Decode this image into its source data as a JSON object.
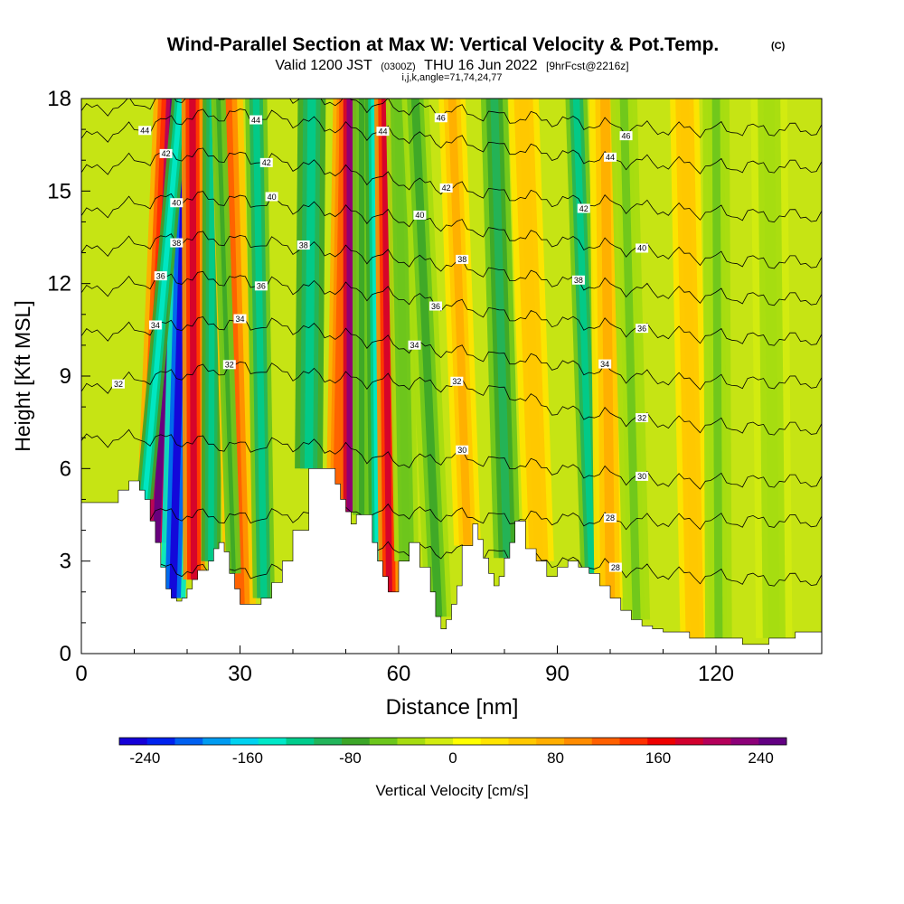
{
  "header": {
    "title_main": "Wind-Parallel Section at Max W: Vertical Velocity & Pot.Temp.",
    "title_mark": "(C)",
    "valid_prefix": "Valid 1200 JST",
    "valid_utc": "(0300Z)",
    "valid_date": "THU 16 Jun 2022",
    "valid_fcst": "[9hrFcst@2216z]",
    "section_info": "i,j,k,angle=71,74,24,77"
  },
  "chart_data": {
    "type": "heatmap",
    "xlabel": "Distance [nm]",
    "ylabel": "Height [Kft MSL]",
    "xlim": [
      0,
      140
    ],
    "ylim": [
      0,
      18
    ],
    "x_ticks": [
      "0",
      "30",
      "60",
      "90",
      "120"
    ],
    "x_tick_values": [
      0,
      30,
      60,
      90,
      120
    ],
    "y_ticks": [
      "0",
      "3",
      "6",
      "9",
      "12",
      "15",
      "18"
    ],
    "y_tick_values": [
      0,
      3,
      6,
      9,
      12,
      15,
      18
    ],
    "colorbar": {
      "label": "Vertical Velocity [cm/s]",
      "tick_labels": [
        "-240",
        "-160",
        "-80",
        "0",
        "80",
        "160",
        "240"
      ],
      "tick_values": [
        -240,
        -160,
        -80,
        0,
        80,
        160,
        240
      ],
      "range": [
        -260,
        260
      ],
      "colors": [
        "#1500d8",
        "#0022ee",
        "#0060f0",
        "#009bf0",
        "#00d2f0",
        "#00e8c8",
        "#00cc8c",
        "#22b45a",
        "#3ca628",
        "#6cc61c",
        "#a6dc10",
        "#d2ec10",
        "#ffff00",
        "#ffe400",
        "#ffc800",
        "#ffae00",
        "#ff8c00",
        "#ff6000",
        "#ff3000",
        "#ee0000",
        "#d2002e",
        "#b4005a",
        "#8c0078",
        "#620082"
      ]
    },
    "terrain_profile": {
      "x": [
        0,
        7,
        7,
        9,
        9,
        11,
        11,
        12,
        12,
        13,
        13,
        14,
        14,
        15,
        15,
        16,
        16,
        17,
        17,
        18,
        18,
        19,
        19,
        20,
        20,
        21,
        21,
        22,
        22,
        24,
        24,
        25,
        25,
        26,
        26,
        27,
        27,
        28,
        28,
        29,
        29,
        30,
        30,
        32,
        32,
        34,
        34,
        36,
        36,
        38,
        38,
        40,
        40,
        43,
        43,
        48,
        48,
        49,
        49,
        50,
        50,
        51,
        51,
        52,
        52,
        55,
        55,
        56,
        56,
        57,
        57,
        58,
        58,
        60,
        60,
        62,
        62,
        64,
        64,
        66,
        66,
        67,
        67,
        68,
        68,
        69,
        69,
        70,
        70,
        71,
        71,
        72,
        72,
        74,
        74,
        75,
        75,
        76,
        76,
        77,
        77,
        78,
        78,
        79,
        79,
        80,
        80,
        81,
        81,
        82,
        82,
        84,
        84,
        86,
        86,
        88,
        88,
        90,
        90,
        92,
        92,
        94,
        94,
        96,
        96,
        98,
        98,
        100,
        100,
        102,
        102,
        104,
        104,
        106,
        106,
        108,
        108,
        110,
        110,
        115,
        115,
        125,
        125,
        130,
        130,
        135,
        135,
        140
      ],
      "height": [
        4.9,
        4.9,
        5.3,
        5.3,
        5.6,
        5.6,
        5.3,
        5.3,
        5.0,
        5.0,
        4.3,
        4.3,
        3.6,
        3.6,
        2.8,
        2.8,
        2.1,
        2.1,
        1.8,
        1.8,
        1.7,
        1.7,
        1.8,
        1.8,
        2.1,
        2.1,
        2.4,
        2.4,
        2.7,
        2.7,
        3.0,
        3.0,
        3.4,
        3.4,
        3.6,
        3.6,
        3.3,
        3.3,
        2.6,
        2.6,
        2.1,
        2.1,
        1.6,
        1.6,
        1.6,
        1.6,
        1.8,
        1.8,
        2.3,
        2.3,
        3.0,
        3.0,
        4.0,
        4.0,
        6.0,
        6.0,
        5.5,
        5.5,
        5.0,
        5.0,
        4.6,
        4.6,
        4.2,
        4.2,
        4.5,
        4.5,
        3.6,
        3.6,
        3.0,
        3.0,
        2.5,
        2.5,
        2.0,
        2.0,
        3.0,
        3.0,
        3.6,
        3.6,
        2.8,
        2.8,
        2.0,
        2.0,
        1.2,
        1.2,
        0.8,
        0.8,
        1.1,
        1.1,
        1.6,
        1.6,
        2.2,
        2.2,
        3.5,
        3.5,
        4.2,
        4.2,
        3.7,
        3.7,
        3.1,
        3.1,
        2.6,
        2.6,
        2.2,
        2.2,
        2.5,
        2.5,
        3.1,
        3.1,
        3.6,
        3.6,
        4.3,
        4.3,
        3.4,
        3.4,
        3.0,
        3.0,
        2.5,
        2.5,
        2.8,
        2.8,
        3.0,
        3.0,
        2.8,
        2.8,
        2.6,
        2.6,
        2.2,
        2.2,
        1.8,
        1.8,
        1.4,
        1.4,
        1.1,
        1.1,
        0.9,
        0.9,
        0.8,
        0.8,
        0.7,
        0.7,
        0.5,
        0.5,
        0.3,
        0.3,
        0.5,
        0.5,
        0.7,
        0.7
      ]
    },
    "velocity_bands": [
      {
        "x": 12.8,
        "w": 1.9,
        "v": 150,
        "x_top": 16.0
      },
      {
        "x": 14.2,
        "w": 2.0,
        "v": 250,
        "x_top": 17.6
      },
      {
        "x": 17.3,
        "w": 2.1,
        "v": -250,
        "x_top": 20.0
      },
      {
        "x": 12.0,
        "w": 1.4,
        "v": -150,
        "x_top": 19.0
      },
      {
        "x": 21.3,
        "w": 1.8,
        "v": 180,
        "x_top": 21.0
      },
      {
        "x": 24.5,
        "w": 1.6,
        "v": -120,
        "x_top": 24.8
      },
      {
        "x": 30.0,
        "w": 2.6,
        "v": 110,
        "x_top": 27.5
      },
      {
        "x": 34.5,
        "w": 1.8,
        "v": -110,
        "x_top": 33.0
      },
      {
        "x": 28.8,
        "w": 1.2,
        "v": -80,
        "x_top": 25.8
      },
      {
        "x": 43.0,
        "w": 2.3,
        "v": -120,
        "x_top": 43.6
      },
      {
        "x": 48.2,
        "w": 1.6,
        "v": 120,
        "x_top": 49.5
      },
      {
        "x": 50.8,
        "w": 1.8,
        "v": 220,
        "x_top": 50.8
      },
      {
        "x": 53.0,
        "w": 1.5,
        "v": -80,
        "x_top": 53.0
      },
      {
        "x": 56.0,
        "w": 1.4,
        "v": -140,
        "x_top": 55.2
      },
      {
        "x": 58.2,
        "w": 1.7,
        "v": 180,
        "x_top": 57.3
      },
      {
        "x": 61.5,
        "w": 2.0,
        "v": -60,
        "x_top": 59.8
      },
      {
        "x": 67.5,
        "w": 2.2,
        "v": -75,
        "x_top": 63.0
      },
      {
        "x": 73.0,
        "w": 2.2,
        "v": 70,
        "x_top": 70.0
      },
      {
        "x": 80.5,
        "w": 2.2,
        "v": -90,
        "x_top": 78.0
      },
      {
        "x": 86.5,
        "w": 2.5,
        "v": 60,
        "x_top": 83.5
      },
      {
        "x": 96.5,
        "w": 1.8,
        "v": -110,
        "x_top": 93.5
      },
      {
        "x": 100.0,
        "w": 2.6,
        "v": 70,
        "x_top": 99.0
      },
      {
        "x": 105.0,
        "w": 2.2,
        "v": -50,
        "x_top": 102.5
      },
      {
        "x": 116.0,
        "w": 2.4,
        "v": 60,
        "x_top": 114.0
      },
      {
        "x": 120.5,
        "w": 2.2,
        "v": -45,
        "x_top": 120.0
      },
      {
        "x": 131.0,
        "w": 3.0,
        "v": -35,
        "x_top": 130.0
      }
    ],
    "theta_contours": [
      {
        "k": "28",
        "y": [
          2.8,
          2.8,
          2.7,
          2.6,
          2.7,
          3.2,
          3.4,
          3.3,
          3.2,
          3.0,
          2.8,
          2.6,
          2.5,
          2.4,
          2.4
        ],
        "labels": [
          {
            "x": 101.0,
            "text": "28"
          }
        ]
      },
      {
        "k": "28",
        "y": [
          4.6,
          4.6,
          4.5,
          4.4,
          4.5,
          4.5,
          4.6,
          4.5,
          4.4,
          4.4,
          4.3,
          4.3,
          4.3,
          4.3,
          4.3
        ],
        "labels": [
          {
            "x": 100.0,
            "text": "28"
          }
        ]
      },
      {
        "k": "30",
        "y": [
          6.9,
          7.0,
          6.9,
          6.7,
          6.8,
          6.6,
          6.2,
          6.4,
          6.2,
          6.0,
          5.8,
          5.6,
          5.6,
          5.6,
          5.6
        ],
        "labels": [
          {
            "x": 72.0,
            "text": "30"
          },
          {
            "x": 106.0,
            "text": "30"
          }
        ]
      },
      {
        "k": "32",
        "y": [
          8.5,
          8.9,
          9.1,
          9.3,
          9.1,
          8.9,
          8.8,
          8.7,
          8.5,
          7.9,
          7.7,
          7.5,
          7.4,
          7.3,
          7.3
        ],
        "labels": [
          {
            "x": 7.0,
            "text": "32"
          },
          {
            "x": 28.0,
            "text": "32"
          },
          {
            "x": 71.0,
            "text": "32"
          },
          {
            "x": 106.0,
            "text": "32"
          }
        ]
      },
      {
        "k": "34",
        "y": [
          10.3,
          10.5,
          10.7,
          10.7,
          10.6,
          10.3,
          10.0,
          9.8,
          9.6,
          9.4,
          9.1,
          8.9,
          8.8,
          8.8,
          8.8
        ],
        "labels": [
          {
            "x": 14.0,
            "text": "34"
          },
          {
            "x": 30.0,
            "text": "34"
          },
          {
            "x": 63.0,
            "text": "34"
          },
          {
            "x": 99.0,
            "text": "34"
          }
        ]
      },
      {
        "k": "36",
        "y": [
          11.7,
          12.0,
          12.2,
          12.1,
          11.9,
          11.8,
          11.6,
          11.3,
          11.0,
          10.8,
          10.6,
          10.4,
          10.3,
          10.2,
          10.2
        ],
        "labels": [
          {
            "x": 15.0,
            "text": "36"
          },
          {
            "x": 34.0,
            "text": "36"
          },
          {
            "x": 67.0,
            "text": "36"
          },
          {
            "x": 106.0,
            "text": "36"
          }
        ]
      },
      {
        "k": "38",
        "y": [
          13.0,
          13.3,
          13.5,
          13.4,
          13.2,
          13.0,
          12.8,
          12.6,
          12.3,
          12.1,
          11.9,
          11.7,
          11.6,
          11.5,
          11.5
        ],
        "labels": [
          {
            "x": 18.0,
            "text": "38"
          },
          {
            "x": 42.0,
            "text": "38"
          },
          {
            "x": 72.0,
            "text": "38"
          },
          {
            "x": 94.0,
            "text": "38"
          }
        ]
      },
      {
        "k": "40",
        "y": [
          14.2,
          14.6,
          14.8,
          14.7,
          14.5,
          14.3,
          14.1,
          13.9,
          13.6,
          13.4,
          13.2,
          13.0,
          12.8,
          12.7,
          12.7
        ],
        "labels": [
          {
            "x": 18.0,
            "text": "40"
          },
          {
            "x": 36.0,
            "text": "40"
          },
          {
            "x": 64.0,
            "text": "40"
          },
          {
            "x": 106.0,
            "text": "40"
          }
        ]
      },
      {
        "k": "42",
        "y": [
          15.6,
          16.0,
          16.2,
          16.1,
          15.9,
          15.6,
          15.3,
          15.1,
          14.9,
          14.7,
          14.6,
          14.4,
          14.3,
          14.2,
          14.2
        ],
        "labels": [
          {
            "x": 16.0,
            "text": "42"
          },
          {
            "x": 35.0,
            "text": "42"
          },
          {
            "x": 69.0,
            "text": "42"
          },
          {
            "x": 95.0,
            "text": "42"
          }
        ]
      },
      {
        "k": "44",
        "y": [
          16.7,
          17.0,
          17.4,
          17.5,
          17.3,
          17.0,
          16.8,
          16.6,
          16.4,
          16.2,
          16.0,
          15.9,
          15.8,
          15.8,
          15.8
        ],
        "labels": [
          {
            "x": 12.0,
            "text": "44"
          },
          {
            "x": 33.0,
            "text": "44"
          },
          {
            "x": 57.0,
            "text": "44"
          },
          {
            "x": 100.0,
            "text": "44"
          }
        ]
      },
      {
        "k": "46",
        "y": [
          17.6,
          17.8,
          18.1,
          18.2,
          18.1,
          17.9,
          17.7,
          17.6,
          17.4,
          17.3,
          17.1,
          17.0,
          17.0,
          17.0,
          17.0
        ],
        "labels": [
          {
            "x": 68.0,
            "text": "46"
          },
          {
            "x": 103.0,
            "text": "46"
          }
        ]
      }
    ]
  }
}
